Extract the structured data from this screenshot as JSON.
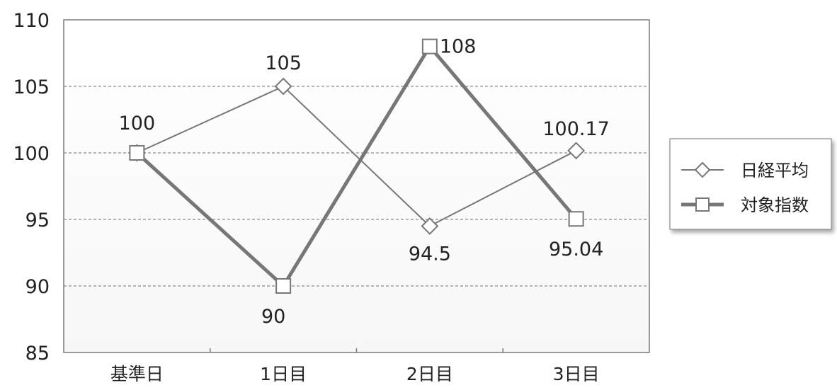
{
  "chart_data": {
    "type": "line",
    "categories": [
      "基準日",
      "1日目",
      "2日目",
      "3日目"
    ],
    "series": [
      {
        "name": "日経平均",
        "values": [
          100,
          105,
          94.5,
          100.17
        ],
        "labels": [
          "100",
          "105",
          "94.5",
          "100.17"
        ],
        "marker": "diamond",
        "color": "#777777",
        "weight": "thin"
      },
      {
        "name": "対象指数",
        "values": [
          100,
          90,
          108,
          95.04
        ],
        "labels": [
          "",
          "90",
          "108",
          "95.04"
        ],
        "marker": "square",
        "color": "#777777",
        "weight": "thick"
      }
    ],
    "ylim": [
      85,
      110
    ],
    "yticks": [
      85,
      90,
      95,
      100,
      105,
      110
    ],
    "grid": "horizontal-dashed",
    "legend": "right",
    "title": "",
    "xlabel": "",
    "ylabel": ""
  },
  "colors": {
    "frame": "#7a7a7a",
    "grid": "#8c8c8c",
    "plot_bg": "#fbfbfb",
    "series": "#777777"
  }
}
